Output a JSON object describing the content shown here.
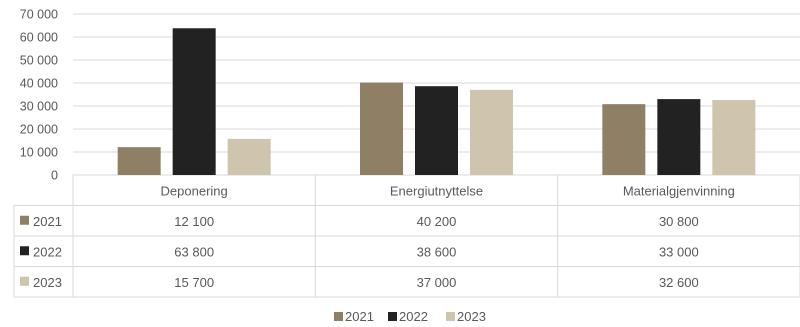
{
  "chart_data": {
    "type": "bar",
    "title": "",
    "xlabel": "",
    "ylabel": "",
    "categories": [
      "Deponering",
      "Energiutnyttelse",
      "Materialgjenvinning"
    ],
    "series": [
      {
        "name": "2021",
        "values": [
          12100,
          40200,
          30800
        ],
        "color": "#8f7f64"
      },
      {
        "name": "2022",
        "values": [
          63800,
          38600,
          33000
        ],
        "color": "#222222"
      },
      {
        "name": "2023",
        "values": [
          15700,
          37000,
          32600
        ],
        "color": "#cfc4ad"
      }
    ],
    "value_labels": [
      [
        "12 100",
        "40 200",
        "30 800"
      ],
      [
        "63 800",
        "38 600",
        "33 000"
      ],
      [
        "15 700",
        "37 000",
        "32 600"
      ]
    ],
    "ylim": [
      0,
      70000
    ],
    "yticks": [
      0,
      10000,
      20000,
      30000,
      40000,
      50000,
      60000,
      70000
    ],
    "ytick_labels": [
      "0",
      "10 000",
      "20 000",
      "30 000",
      "40 000",
      "50 000",
      "60 000",
      "70 000"
    ],
    "grid": true,
    "data_table": true,
    "legend_position": "bottom"
  }
}
